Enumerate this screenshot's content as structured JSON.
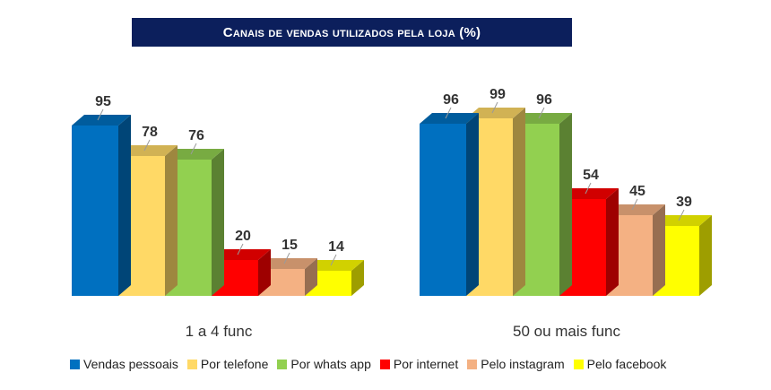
{
  "chart_data": {
    "type": "bar",
    "title": "Canais de vendas utilizados pela loja (%)",
    "categories": [
      "1 a 4 func",
      "50 ou mais func"
    ],
    "ylim": [
      0,
      100
    ],
    "grid": false,
    "legend_position": "bottom",
    "series": [
      {
        "name": "Vendas pessoais",
        "color": "#0070c0",
        "values": [
          95,
          96
        ]
      },
      {
        "name": "Por telefone",
        "color": "#ffd966",
        "values": [
          78,
          99
        ]
      },
      {
        "name": "Por whats app",
        "color": "#92d050",
        "values": [
          76,
          96
        ]
      },
      {
        "name": "Por internet",
        "color": "#ff0000",
        "values": [
          20,
          54
        ]
      },
      {
        "name": "Pelo instagram",
        "color": "#f4b183",
        "values": [
          15,
          45
        ]
      },
      {
        "name": "Pelo facebook",
        "color": "#ffff00",
        "values": [
          14,
          39
        ]
      }
    ]
  }
}
